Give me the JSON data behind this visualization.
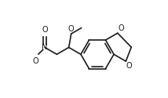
{
  "bg_color": "#ffffff",
  "line_color": "#1a1a1a",
  "line_width": 1.2,
  "font_size": 7.0,
  "fig_width": 2.14,
  "fig_height": 1.25,
  "dpi": 100,
  "xlim": [
    0.0,
    1.0
  ],
  "ylim": [
    0.05,
    0.95
  ]
}
